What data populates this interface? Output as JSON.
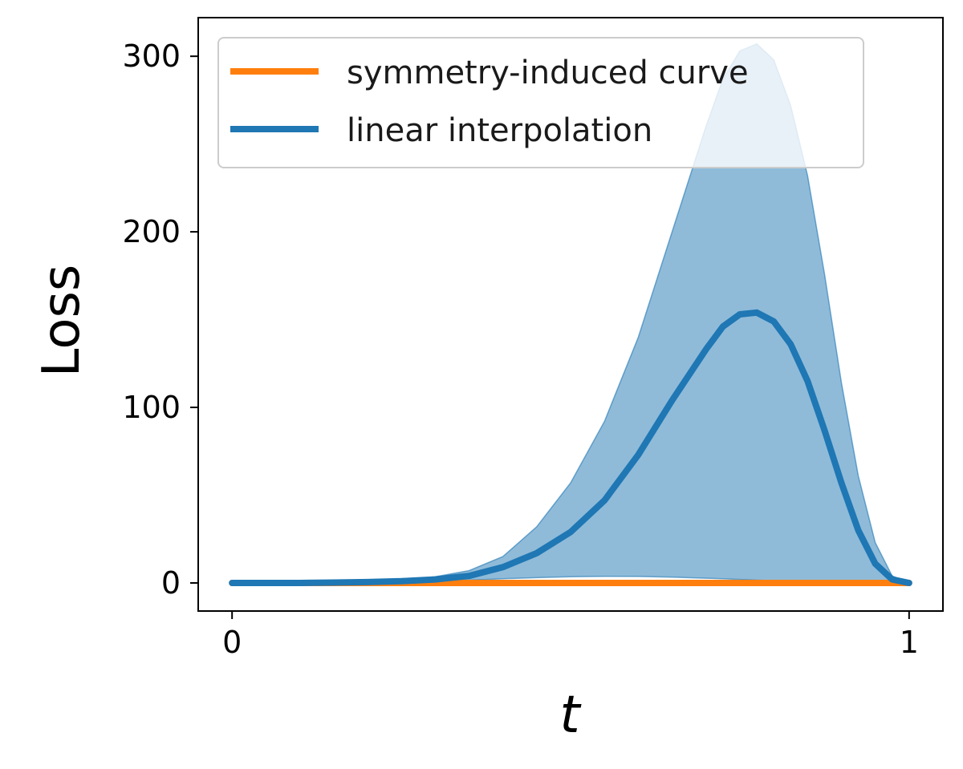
{
  "chart_data": {
    "type": "line",
    "title": "",
    "xlabel": "t",
    "ylabel": "Loss",
    "xlim": [
      -0.05,
      1.05
    ],
    "ylim": [
      -16,
      322
    ],
    "x_ticks": [
      0,
      1
    ],
    "x_tick_labels": [
      "0",
      "1"
    ],
    "y_ticks": [
      0,
      100,
      200,
      300
    ],
    "y_tick_labels": [
      "0",
      "100",
      "200",
      "300"
    ],
    "grid": false,
    "legend_position": "upper left",
    "series": [
      {
        "name": "symmetry-induced curve",
        "color": "#ff7f0e",
        "x": [
          0,
          0.1,
          0.2,
          0.3,
          0.4,
          0.5,
          0.6,
          0.7,
          0.8,
          0.9,
          1.0
        ],
        "y": [
          0,
          0,
          0,
          0,
          0,
          0,
          0,
          0,
          0,
          0,
          0
        ]
      },
      {
        "name": "linear interpolation",
        "color": "#1f77b4",
        "x": [
          0,
          0.05,
          0.1,
          0.15,
          0.2,
          0.25,
          0.3,
          0.35,
          0.4,
          0.45,
          0.5,
          0.55,
          0.6,
          0.65,
          0.7,
          0.725,
          0.75,
          0.775,
          0.8,
          0.825,
          0.85,
          0.875,
          0.9,
          0.925,
          0.95,
          0.975,
          1.0
        ],
        "y": [
          0,
          0,
          0,
          0.2,
          0.5,
          1,
          2,
          4,
          9,
          17,
          29,
          47,
          73,
          104,
          133,
          146,
          153,
          154,
          149,
          136,
          115,
          87,
          57,
          30,
          11,
          2,
          0
        ],
        "band": {
          "lower": [
            0,
            0,
            0,
            0.1,
            0.3,
            0.6,
            1,
            1.6,
            2.4,
            3,
            3.5,
            3.8,
            3.7,
            3.3,
            2.7,
            2.4,
            2,
            1.6,
            1.3,
            1,
            0.7,
            0.5,
            0.3,
            0.2,
            0.1,
            0,
            0
          ],
          "upper": [
            0,
            0,
            0,
            0.3,
            0.8,
            1.6,
            3.5,
            7,
            15,
            32,
            57,
            92,
            140,
            200,
            260,
            287,
            303,
            307,
            298,
            272,
            232,
            176,
            114,
            61,
            23,
            4,
            0
          ]
        }
      }
    ]
  }
}
